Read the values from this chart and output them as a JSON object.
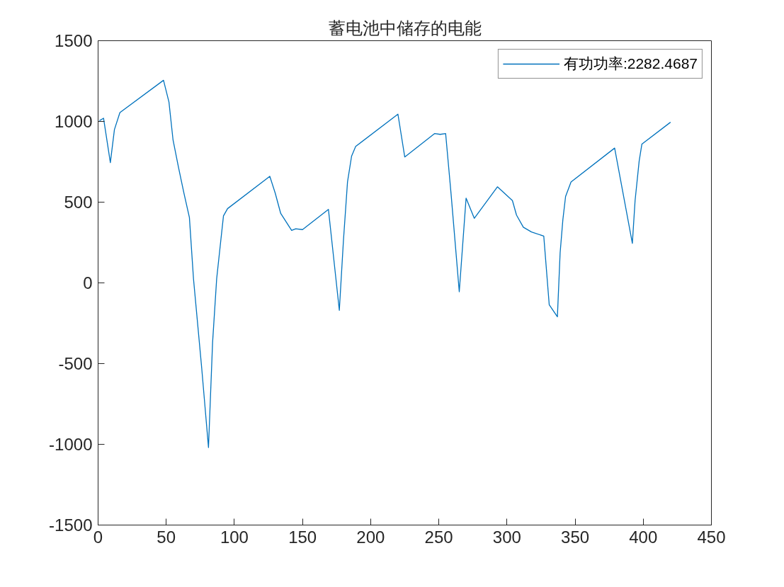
{
  "chart_data": {
    "type": "line",
    "title": "蓄电池中储存的电能",
    "x": [
      1,
      4,
      9,
      12,
      16,
      48,
      52,
      55,
      59,
      63,
      67,
      70,
      76,
      81,
      84,
      87,
      90,
      92,
      95,
      126,
      130,
      134,
      142,
      145,
      150,
      169,
      177,
      180,
      183,
      186,
      189,
      220,
      225,
      247,
      251,
      255,
      259,
      265,
      270,
      276,
      293,
      304,
      307,
      312,
      318,
      327,
      331,
      337,
      339,
      341,
      343,
      347,
      379,
      392,
      394,
      397,
      399,
      420
    ],
    "series": [
      {
        "name": "有功功率:2282.4687",
        "color": "#0072bd",
        "values": [
          1005,
          1020,
          745,
          950,
          1055,
          1255,
          1120,
          885,
          715,
          555,
          405,
          25,
          -525,
          -1020,
          -370,
          25,
          260,
          415,
          460,
          660,
          555,
          430,
          325,
          335,
          330,
          455,
          -170,
          260,
          625,
          785,
          845,
          1045,
          780,
          925,
          920,
          925,
          550,
          -55,
          525,
          400,
          595,
          510,
          420,
          345,
          315,
          290,
          -135,
          -210,
          185,
          390,
          535,
          625,
          835,
          245,
          510,
          755,
          860,
          995
        ]
      }
    ],
    "xlim": [
      0,
      450
    ],
    "xticks": [
      0,
      50,
      100,
      150,
      200,
      250,
      300,
      350,
      400,
      450
    ],
    "ylim": [
      -1500,
      1500
    ],
    "yticks": [
      -1500,
      -1000,
      -500,
      0,
      500,
      1000,
      1500
    ],
    "grid": false,
    "legend": "top right",
    "marker": "none",
    "line_style": "solid"
  }
}
